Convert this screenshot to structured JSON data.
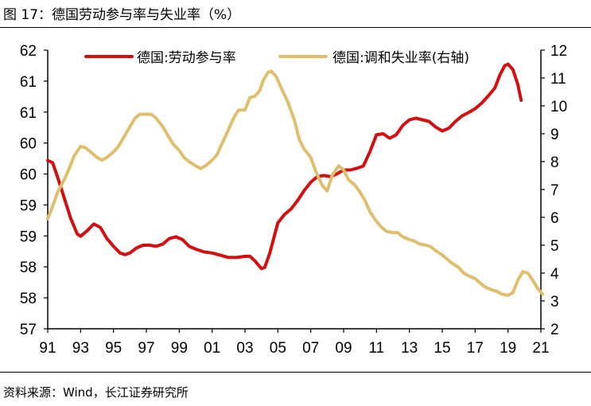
{
  "figure": {
    "title": "图 17：德国劳动参与率与失业率（%）",
    "source": "资料来源：Wind，长江证券研究所"
  },
  "colors": {
    "participation": "#d40f0f",
    "unemployment": "#dfbe6e"
  },
  "chart_data": {
    "type": "line",
    "title": "",
    "xlabel": "",
    "ylabel": "",
    "x_tick_labels": [
      "91",
      "93",
      "95",
      "97",
      "99",
      "01",
      "03",
      "05",
      "07",
      "09",
      "11",
      "13",
      "15",
      "17",
      "19",
      "21"
    ],
    "x_tick_values": [
      1991,
      1993,
      1995,
      1997,
      1999,
      2001,
      2003,
      2005,
      2007,
      2009,
      2011,
      2013,
      2015,
      2017,
      2019,
      2021
    ],
    "xlim": [
      1991,
      2021
    ],
    "y_left_tick_labels": [
      "62",
      "61",
      "61",
      "60",
      "60",
      "59",
      "59",
      "58",
      "58",
      "57"
    ],
    "y_left_lim": [
      57,
      62
    ],
    "y_right_tick_labels": [
      "12",
      "11",
      "10",
      "9",
      "8",
      "7",
      "6",
      "5",
      "4",
      "3",
      "2"
    ],
    "y_right_lim": [
      2,
      12
    ],
    "legend_position": "top",
    "grid": false,
    "series": [
      {
        "name": "德国:劳动参与率",
        "axis": "left",
        "color": "#d40f0f",
        "points": [
          [
            1991.0,
            60.02
          ],
          [
            1991.3,
            59.98
          ],
          [
            1991.6,
            59.72
          ],
          [
            1992.0,
            59.35
          ],
          [
            1992.4,
            58.98
          ],
          [
            1992.8,
            58.7
          ],
          [
            1993.0,
            58.66
          ],
          [
            1993.4,
            58.76
          ],
          [
            1993.8,
            58.88
          ],
          [
            1994.2,
            58.82
          ],
          [
            1994.6,
            58.62
          ],
          [
            1995.0,
            58.48
          ],
          [
            1995.4,
            58.36
          ],
          [
            1995.7,
            58.33
          ],
          [
            1996.0,
            58.36
          ],
          [
            1996.4,
            58.45
          ],
          [
            1996.8,
            58.5
          ],
          [
            1997.2,
            58.5
          ],
          [
            1997.6,
            58.48
          ],
          [
            1998.0,
            58.52
          ],
          [
            1998.4,
            58.62
          ],
          [
            1998.8,
            58.65
          ],
          [
            1999.2,
            58.6
          ],
          [
            1999.6,
            58.48
          ],
          [
            2000.0,
            58.43
          ],
          [
            2000.5,
            58.38
          ],
          [
            2001.0,
            58.36
          ],
          [
            2001.5,
            58.32
          ],
          [
            2002.0,
            58.28
          ],
          [
            2002.5,
            58.28
          ],
          [
            2003.0,
            58.3
          ],
          [
            2003.3,
            58.3
          ],
          [
            2003.6,
            58.22
          ],
          [
            2004.0,
            58.08
          ],
          [
            2004.2,
            58.1
          ],
          [
            2004.5,
            58.35
          ],
          [
            2004.8,
            58.68
          ],
          [
            2005.0,
            58.9
          ],
          [
            2005.4,
            59.05
          ],
          [
            2005.8,
            59.15
          ],
          [
            2006.2,
            59.3
          ],
          [
            2006.6,
            59.48
          ],
          [
            2007.0,
            59.63
          ],
          [
            2007.4,
            59.73
          ],
          [
            2007.8,
            59.75
          ],
          [
            2008.2,
            59.73
          ],
          [
            2008.6,
            59.78
          ],
          [
            2009.0,
            59.85
          ],
          [
            2009.4,
            59.85
          ],
          [
            2009.8,
            59.88
          ],
          [
            2010.2,
            59.92
          ],
          [
            2010.6,
            60.18
          ],
          [
            2011.0,
            60.48
          ],
          [
            2011.4,
            60.5
          ],
          [
            2011.8,
            60.42
          ],
          [
            2012.2,
            60.48
          ],
          [
            2012.6,
            60.65
          ],
          [
            2013.0,
            60.75
          ],
          [
            2013.4,
            60.78
          ],
          [
            2013.8,
            60.75
          ],
          [
            2014.2,
            60.72
          ],
          [
            2014.6,
            60.62
          ],
          [
            2015.0,
            60.55
          ],
          [
            2015.4,
            60.6
          ],
          [
            2015.8,
            60.72
          ],
          [
            2016.2,
            60.82
          ],
          [
            2016.6,
            60.88
          ],
          [
            2017.0,
            60.95
          ],
          [
            2017.4,
            61.05
          ],
          [
            2017.8,
            61.18
          ],
          [
            2018.2,
            61.32
          ],
          [
            2018.5,
            61.55
          ],
          [
            2018.8,
            61.72
          ],
          [
            2019.0,
            61.75
          ],
          [
            2019.3,
            61.65
          ],
          [
            2019.6,
            61.38
          ],
          [
            2019.8,
            61.1
          ]
        ]
      },
      {
        "name": "德国:调和失业率(右轴)",
        "axis": "right",
        "color": "#dfbe6e",
        "points": [
          [
            1991.0,
            5.95
          ],
          [
            1991.3,
            6.4
          ],
          [
            1991.6,
            6.9
          ],
          [
            1992.0,
            7.35
          ],
          [
            1992.3,
            7.75
          ],
          [
            1992.6,
            8.2
          ],
          [
            1993.0,
            8.55
          ],
          [
            1993.3,
            8.5
          ],
          [
            1993.6,
            8.35
          ],
          [
            1994.0,
            8.15
          ],
          [
            1994.3,
            8.05
          ],
          [
            1994.6,
            8.15
          ],
          [
            1995.0,
            8.35
          ],
          [
            1995.3,
            8.55
          ],
          [
            1995.6,
            8.85
          ],
          [
            1996.0,
            9.25
          ],
          [
            1996.3,
            9.55
          ],
          [
            1996.6,
            9.7
          ],
          [
            1997.0,
            9.7
          ],
          [
            1997.3,
            9.7
          ],
          [
            1997.6,
            9.55
          ],
          [
            1998.0,
            9.25
          ],
          [
            1998.3,
            8.95
          ],
          [
            1998.6,
            8.65
          ],
          [
            1999.0,
            8.4
          ],
          [
            1999.3,
            8.15
          ],
          [
            1999.6,
            8.0
          ],
          [
            2000.0,
            7.85
          ],
          [
            2000.3,
            7.75
          ],
          [
            2000.6,
            7.85
          ],
          [
            2001.0,
            8.05
          ],
          [
            2001.3,
            8.25
          ],
          [
            2001.6,
            8.65
          ],
          [
            2002.0,
            9.15
          ],
          [
            2002.3,
            9.55
          ],
          [
            2002.6,
            9.85
          ],
          [
            2003.0,
            9.85
          ],
          [
            2003.3,
            10.3
          ],
          [
            2003.6,
            10.35
          ],
          [
            2003.9,
            10.55
          ],
          [
            2004.1,
            10.9
          ],
          [
            2004.4,
            11.2
          ],
          [
            2004.6,
            11.25
          ],
          [
            2004.9,
            11.05
          ],
          [
            2005.2,
            10.65
          ],
          [
            2005.6,
            10.15
          ],
          [
            2006.0,
            9.5
          ],
          [
            2006.3,
            8.8
          ],
          [
            2006.6,
            8.45
          ],
          [
            2007.0,
            8.15
          ],
          [
            2007.3,
            7.65
          ],
          [
            2007.7,
            7.15
          ],
          [
            2008.0,
            6.95
          ],
          [
            2008.3,
            7.5
          ],
          [
            2008.7,
            7.85
          ],
          [
            2009.0,
            7.7
          ],
          [
            2009.3,
            7.35
          ],
          [
            2009.7,
            7.15
          ],
          [
            2010.0,
            6.9
          ],
          [
            2010.3,
            6.6
          ],
          [
            2010.6,
            6.2
          ],
          [
            2011.0,
            5.85
          ],
          [
            2011.3,
            5.65
          ],
          [
            2011.6,
            5.5
          ],
          [
            2012.0,
            5.45
          ],
          [
            2012.3,
            5.45
          ],
          [
            2012.6,
            5.3
          ],
          [
            2013.0,
            5.2
          ],
          [
            2013.3,
            5.15
          ],
          [
            2013.6,
            5.05
          ],
          [
            2014.0,
            5.0
          ],
          [
            2014.3,
            4.95
          ],
          [
            2014.6,
            4.8
          ],
          [
            2015.0,
            4.65
          ],
          [
            2015.3,
            4.5
          ],
          [
            2015.6,
            4.35
          ],
          [
            2016.0,
            4.2
          ],
          [
            2016.3,
            4.0
          ],
          [
            2016.6,
            3.9
          ],
          [
            2017.0,
            3.8
          ],
          [
            2017.3,
            3.65
          ],
          [
            2017.6,
            3.5
          ],
          [
            2018.0,
            3.4
          ],
          [
            2018.3,
            3.35
          ],
          [
            2018.6,
            3.25
          ],
          [
            2019.0,
            3.2
          ],
          [
            2019.3,
            3.3
          ],
          [
            2019.6,
            3.75
          ],
          [
            2019.9,
            4.05
          ],
          [
            2020.2,
            4.0
          ],
          [
            2020.5,
            3.75
          ],
          [
            2020.8,
            3.45
          ],
          [
            2021.1,
            3.25
          ]
        ]
      }
    ]
  }
}
